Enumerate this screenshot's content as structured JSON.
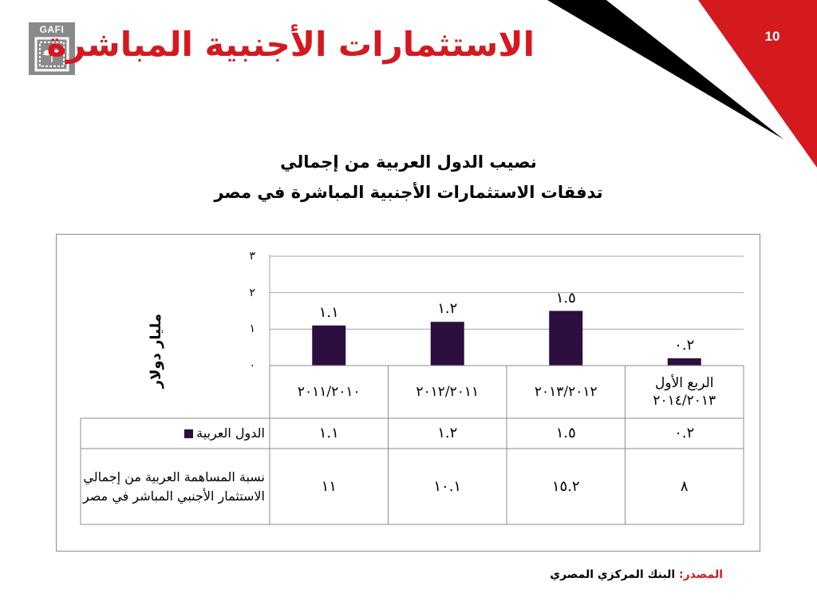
{
  "slide": {
    "number": "10",
    "title": "الاستثمارات الأجنبية المباشرة",
    "logo_text": "GAFI",
    "colors": {
      "accent_red": "#d4191f",
      "corner_black": "#000000",
      "bar": "#2c0e3f",
      "logo_gray": "#8a8a8a"
    }
  },
  "chart_title": {
    "line1": "نصيب الدول العربية من إجمالي",
    "line2": "تدفقات الاستثمارات الأجنبية المباشرة في مصر"
  },
  "chart_data": {
    "type": "bar",
    "ylabel": "مليار دولار",
    "ylim": [
      0,
      3
    ],
    "yticks": [
      0,
      1,
      2,
      3
    ],
    "ytick_labels": [
      "٠",
      "١",
      "٢",
      "٣"
    ],
    "grid": true,
    "categories": [
      "٢٠١١/٢٠١٠",
      "٢٠١٢/٢٠١١",
      "٢٠١٣/٢٠١٢",
      "الربع الأول ٢٠١٤/٢٠١٣"
    ],
    "category_lines": [
      [
        "٢٠١١/٢٠١٠"
      ],
      [
        "٢٠١٢/٢٠١١"
      ],
      [
        "٢٠١٣/٢٠١٢"
      ],
      [
        "الربع الأول",
        "٢٠١٤/٢٠١٣"
      ]
    ],
    "series": [
      {
        "name": "الدول العربية",
        "values": [
          1.1,
          1.2,
          1.5,
          0.2
        ],
        "labels": [
          "١.١",
          "١.٢",
          "١.٥",
          "٠.٢"
        ],
        "color": "#2c0e3f"
      }
    ],
    "table": {
      "rows": [
        {
          "header": "الدول العربية",
          "values": [
            "١.١",
            "١.٢",
            "١.٥",
            "٠.٢"
          ]
        },
        {
          "header": "نسبة المساهمة العربية من إجمالي الاستثمار الأجنبي المباشر في مصر",
          "values": [
            "١١",
            "١٠.١",
            "١٥.٢",
            "٨"
          ]
        }
      ]
    }
  },
  "source": {
    "label": "المصدر:",
    "text": "البنك المركزي المصري"
  }
}
